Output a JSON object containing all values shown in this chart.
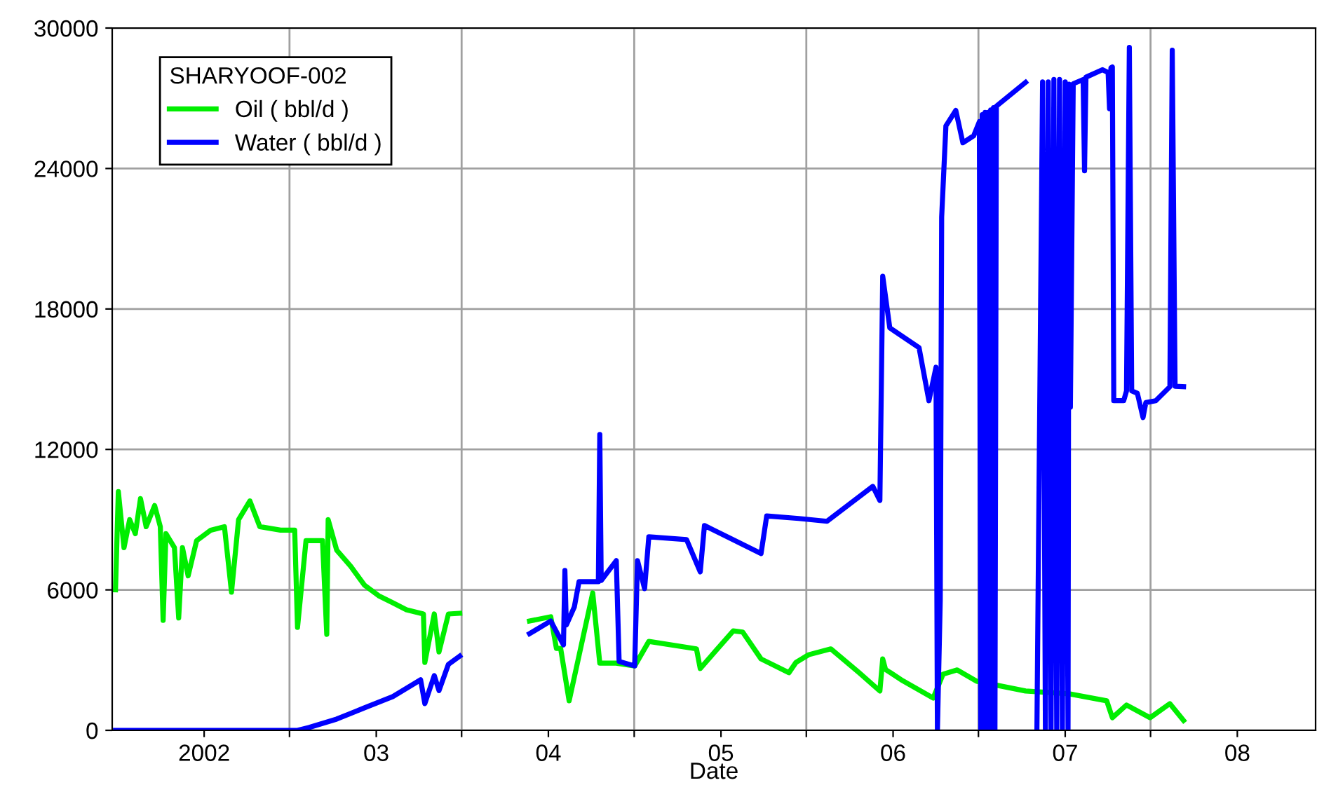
{
  "chart_data": {
    "type": "line",
    "xlabel": "Date",
    "legend_title": "SHARYOOF-002",
    "legend": "top left",
    "grid": true,
    "marker": "none",
    "line_style": "solid",
    "xlim": [
      "2001-06-20",
      "2008-06-15"
    ],
    "xticks": [
      {
        "value": "2002-01-01",
        "label": "2002"
      },
      {
        "value": "2003-01-01",
        "label": "03"
      },
      {
        "value": "2004-01-01",
        "label": "04"
      },
      {
        "value": "2005-01-01",
        "label": "05"
      },
      {
        "value": "2006-01-01",
        "label": "06"
      },
      {
        "value": "2007-01-01",
        "label": "07"
      },
      {
        "value": "2008-01-01",
        "label": "08"
      },
      {
        "value": "2002-07-01",
        "label": null
      },
      {
        "value": "2003-07-01",
        "label": null
      },
      {
        "value": "2004-07-01",
        "label": null
      },
      {
        "value": "2005-07-01",
        "label": null
      },
      {
        "value": "2006-07-01",
        "label": null
      },
      {
        "value": "2007-07-01",
        "label": null
      }
    ],
    "ylim": [
      0,
      30000
    ],
    "yticks": [
      0,
      6000,
      12000,
      18000,
      24000,
      30000
    ],
    "series": [
      {
        "name": "Oil ( bbl/d )",
        "color": "#00ee00",
        "x": [
          "2001-06-27",
          "2001-07-03",
          "2001-07-15",
          "2001-07-27",
          "2001-08-08",
          "2001-08-19",
          "2001-08-31",
          "2001-09-18",
          "2001-09-30",
          "2001-10-06",
          "2001-10-12",
          "2001-10-30",
          "2001-11-08",
          "2001-11-16",
          "2001-11-28",
          "2001-12-16",
          "2002-01-15",
          "2002-02-13",
          "2002-02-28",
          "2002-03-15",
          "2002-04-08",
          "2002-04-29",
          "2002-06-12",
          "2002-07-12",
          "2002-07-18",
          "2002-08-05",
          "2002-09-09",
          "2002-09-18",
          "2002-09-21",
          "2002-10-09",
          "2002-11-08",
          "2002-12-07",
          "2003-01-06",
          "2003-02-05",
          "2003-03-06",
          "2003-04-11",
          "2003-04-14",
          "2003-05-04",
          "2003-05-14",
          "2003-06-03",
          "2003-06-27",
          "2003-09-01",
          "2003-11-22",
          "2004-01-06",
          "2004-01-18",
          "2004-01-27",
          "2004-02-14",
          "2004-04-04",
          "2004-04-19",
          "2004-05-24",
          "2004-07-02",
          "2004-08-01",
          "2004-11-10",
          "2004-11-18",
          "2005-01-27",
          "2005-02-16",
          "2005-03-27",
          "2005-05-25",
          "2005-06-09",
          "2005-07-06",
          "2005-08-22",
          "2005-10-21",
          "2005-12-04",
          "2005-12-10",
          "2005-12-16",
          "2006-01-18",
          "2006-03-27",
          "2006-04-17",
          "2006-05-17",
          "2006-06-27",
          "2006-10-09",
          "2007-01-09",
          "2007-03-30",
          "2007-04-11",
          "2007-05-11",
          "2007-06-30",
          "2007-08-11",
          "2007-09-09"
        ],
        "values": [
          6000,
          10200,
          7800,
          9000,
          8400,
          9900,
          8700,
          9600,
          8700,
          4700,
          8400,
          7800,
          4800,
          7800,
          6600,
          8100,
          8550,
          8700,
          5900,
          9000,
          9800,
          8700,
          8550,
          8550,
          4400,
          8100,
          8100,
          4100,
          9000,
          7700,
          7000,
          6200,
          5750,
          5450,
          5150,
          4970,
          2900,
          4970,
          3350,
          4970,
          5000,
          null,
          4670,
          4850,
          3500,
          3500,
          1260,
          5870,
          2870,
          2870,
          2750,
          3800,
          3480,
          2640,
          4250,
          4200,
          3050,
          2460,
          2900,
          3230,
          3480,
          2460,
          1680,
          3050,
          2600,
          2160,
          1380,
          2400,
          2580,
          2100,
          1680,
          1560,
          1260,
          540,
          1080,
          540,
          1140,
          420
        ]
      },
      {
        "name": "Water ( bbl/d )",
        "color": "#0000ff",
        "x": [
          "2001-06-27",
          "2002-07-18",
          "2002-08-11",
          "2002-10-09",
          "2002-12-07",
          "2003-02-05",
          "2003-04-05",
          "2003-04-14",
          "2003-05-04",
          "2003-05-14",
          "2003-06-03",
          "2003-06-27",
          "2003-09-01",
          "2003-11-22",
          "2004-01-06",
          "2004-02-02",
          "2004-02-05",
          "2004-02-08",
          "2004-02-25",
          "2004-03-06",
          "2004-04-16",
          "2004-04-19",
          "2004-04-22",
          "2004-05-24",
          "2004-05-30",
          "2004-07-02",
          "2004-07-08",
          "2004-07-23",
          "2004-08-01",
          "2004-10-20",
          "2004-11-18",
          "2004-11-27",
          "2005-03-27",
          "2005-04-08",
          "2005-06-15",
          "2005-08-14",
          "2005-11-19",
          "2005-12-04",
          "2005-12-10",
          "2005-12-25",
          "2006-02-25",
          "2006-03-18",
          "2006-04-02",
          "2006-04-05",
          "2006-04-11",
          "2006-04-14",
          "2006-04-23",
          "2006-05-14",
          "2006-05-29",
          "2006-06-21",
          "2006-07-03",
          "2006-07-06",
          "2006-07-09",
          "2006-07-12",
          "2006-07-15",
          "2006-07-18",
          "2006-07-21",
          "2006-07-24",
          "2006-07-27",
          "2006-07-30",
          "2006-08-02",
          "2006-08-05",
          "2006-08-08",
          "2006-10-09",
          "2006-10-20",
          "2006-11-02",
          "2006-11-14",
          "2006-11-20",
          "2006-11-26",
          "2006-12-02",
          "2006-12-08",
          "2006-12-14",
          "2006-12-20",
          "2006-12-26",
          "2007-01-01",
          "2007-01-07",
          "2007-01-09",
          "2007-01-12",
          "2007-01-18",
          "2007-02-08",
          "2007-02-11",
          "2007-02-14",
          "2007-03-21",
          "2007-04-02",
          "2007-04-05",
          "2007-04-08",
          "2007-04-11",
          "2007-04-14",
          "2007-05-05",
          "2007-05-11",
          "2007-05-17",
          "2007-05-22",
          "2007-06-03",
          "2007-06-15",
          "2007-06-21",
          "2007-07-12",
          "2007-08-11",
          "2007-08-16",
          "2007-08-22",
          "2007-09-09"
        ],
        "values": [
          0,
          0,
          120,
          480,
          960,
          1440,
          2160,
          1140,
          2340,
          1700,
          2820,
          3170,
          null,
          4130,
          4670,
          3650,
          6830,
          4500,
          5270,
          6350,
          6350,
          12640,
          6400,
          7250,
          2940,
          2750,
          7250,
          6050,
          8270,
          8150,
          6770,
          8750,
          7550,
          9160,
          9050,
          8930,
          10420,
          9820,
          19400,
          17190,
          16350,
          14080,
          15510,
          0,
          5570,
          21920,
          25820,
          26480,
          25100,
          25400,
          26000,
          0,
          26300,
          0,
          26400,
          0,
          26400,
          0,
          26500,
          0,
          26600,
          0,
          26660,
          27680,
          null,
          0,
          27700,
          0,
          27700,
          0,
          27800,
          0,
          27800,
          0,
          27700,
          0,
          27600,
          13800,
          27620,
          27800,
          23900,
          27900,
          28220,
          28100,
          26550,
          28300,
          28340,
          14080,
          14080,
          14500,
          29170,
          14500,
          14400,
          13360,
          14000,
          14080,
          14680,
          29050,
          14700,
          14680
        ]
      }
    ]
  }
}
